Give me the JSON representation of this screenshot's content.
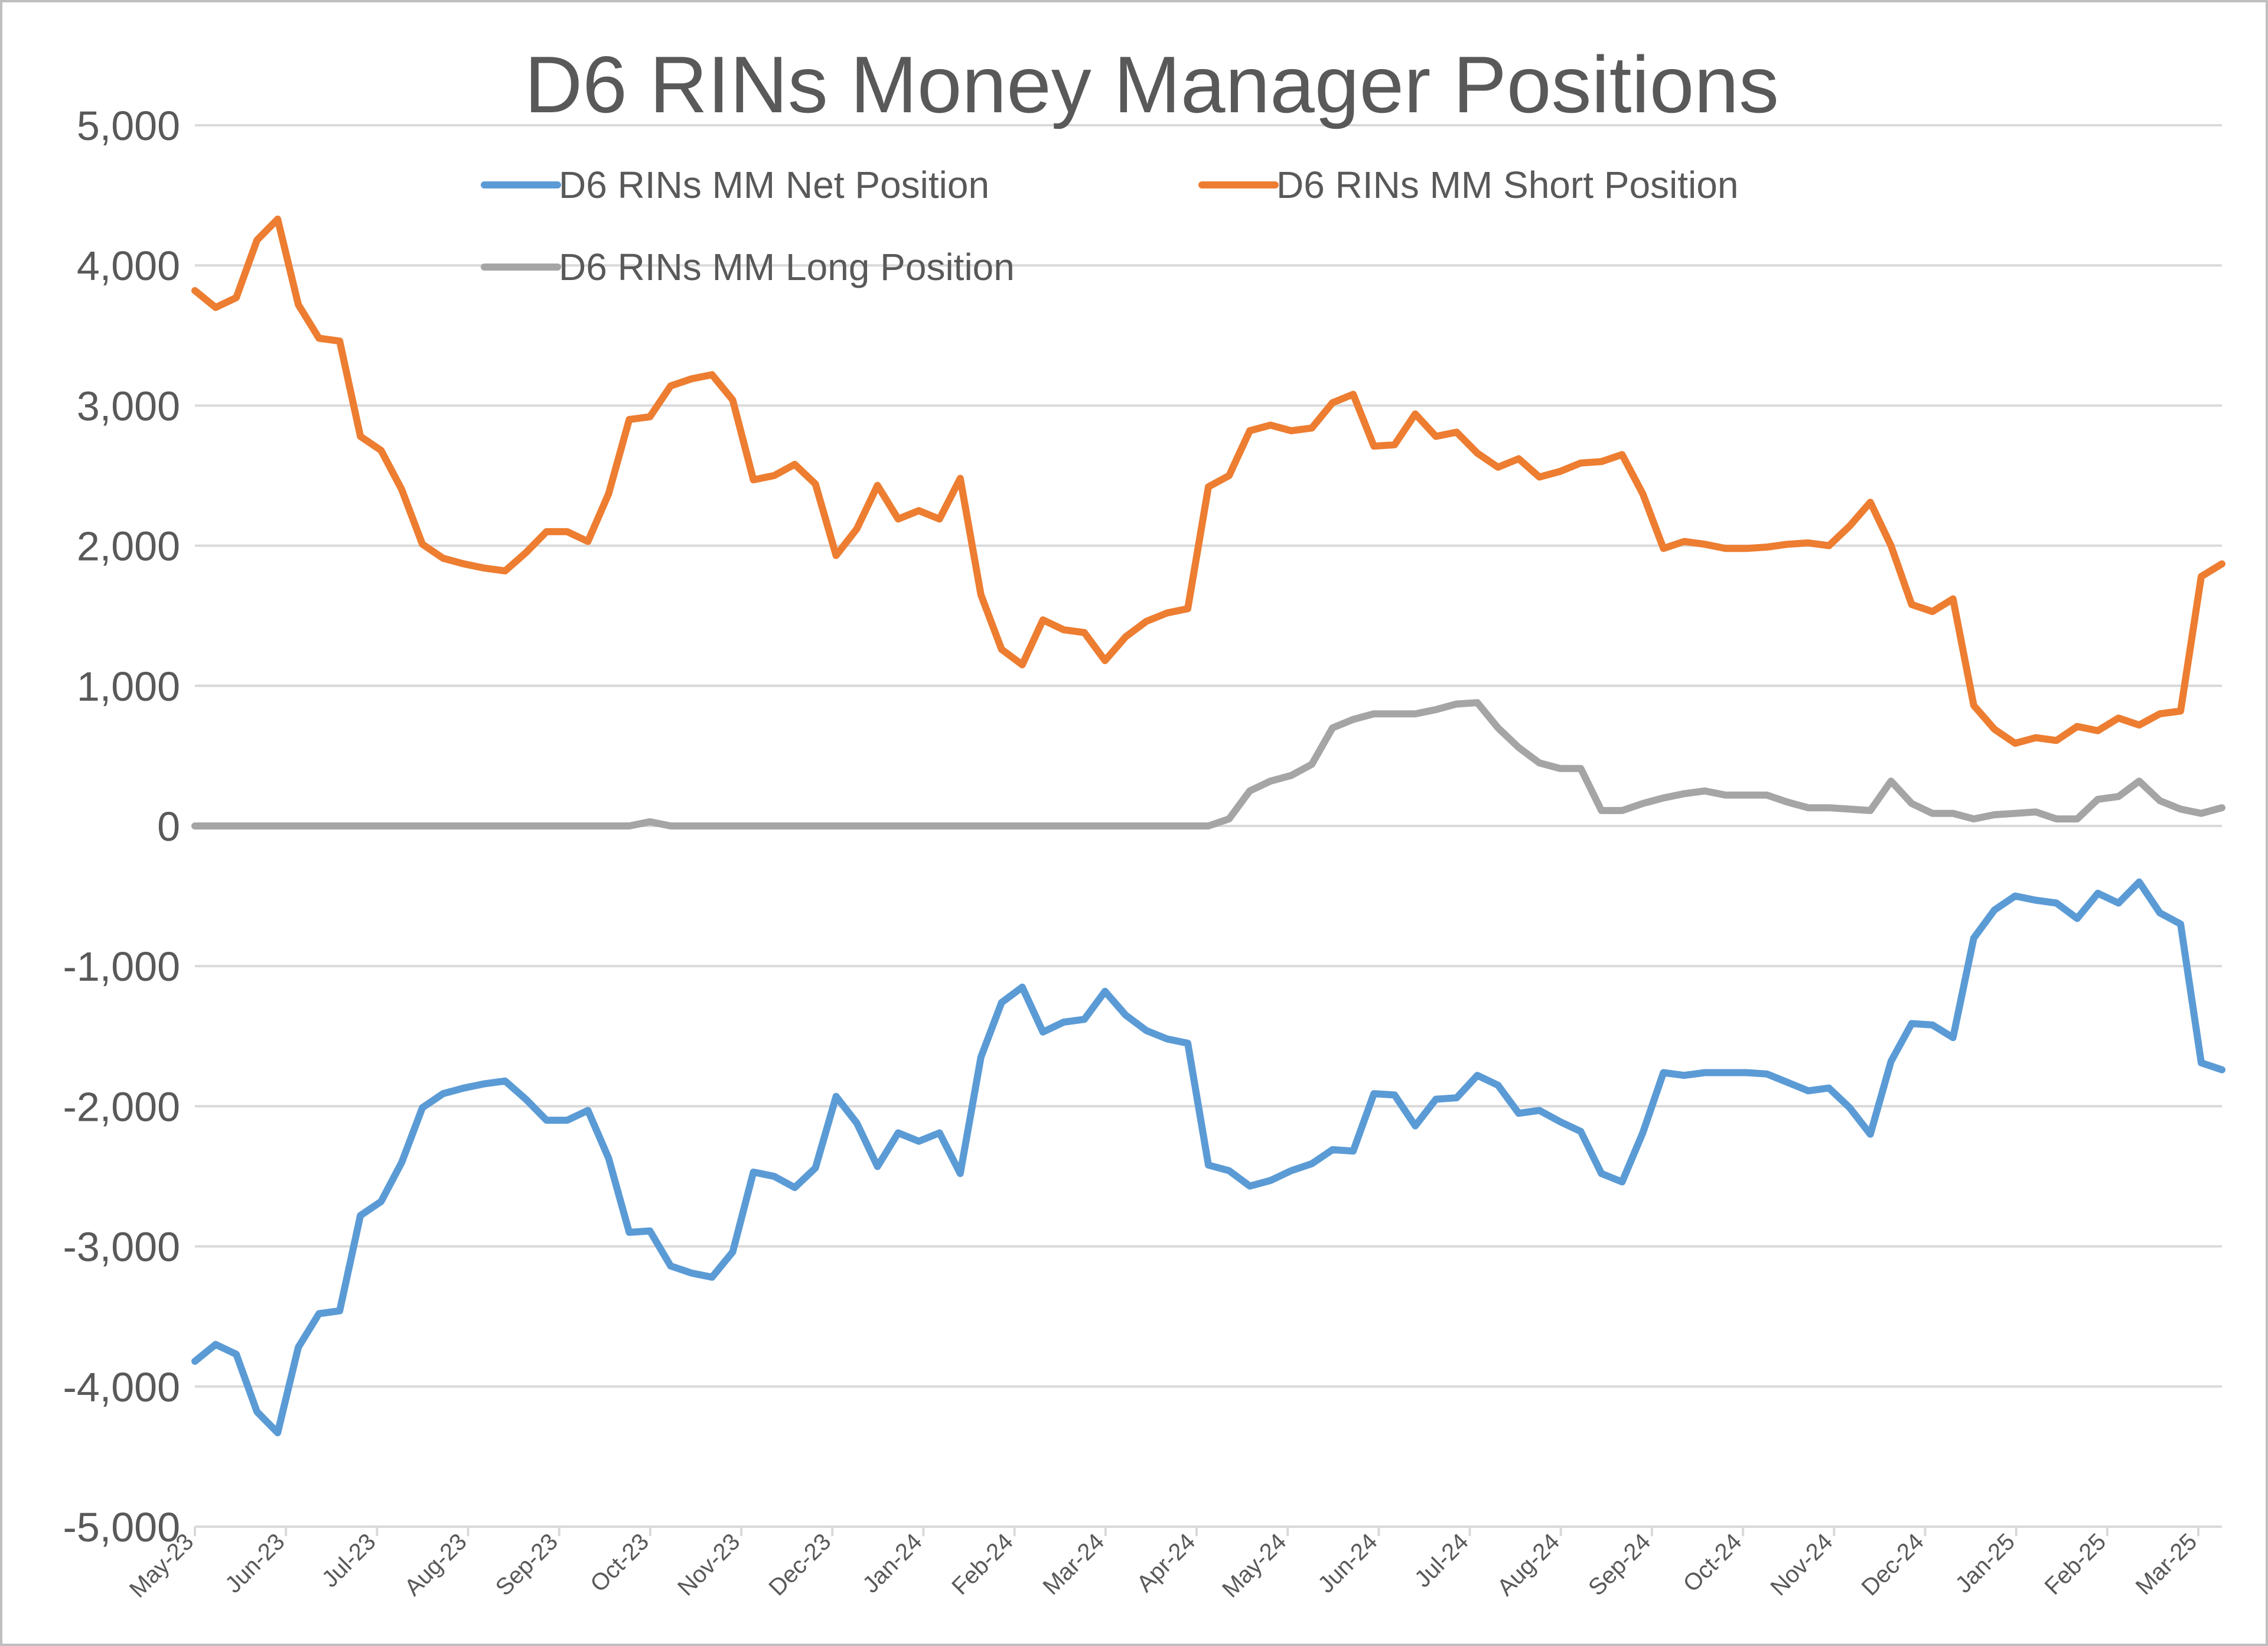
{
  "chart_data": {
    "type": "line",
    "title": "D6 RINs Money Manager Positions",
    "xlabel": "",
    "ylabel": "",
    "ylim": [
      -5000,
      5000
    ],
    "y_ticks": [
      5000,
      4000,
      3000,
      2000,
      1000,
      0,
      -1000,
      -2000,
      -3000,
      -4000,
      -5000
    ],
    "y_tick_labels": [
      "5,000",
      "4,000",
      "3,000",
      "2,000",
      "1,000",
      "0",
      "-1,000",
      "-2,000",
      "-3,000",
      "-4,000",
      "-5,000"
    ],
    "x_tick_labels": [
      "May-23",
      "Jun-23",
      "Jul-23",
      "Aug-23",
      "Sep-23",
      "Oct-23",
      "Nov-23",
      "Dec-23",
      "Jan-24",
      "Feb-24",
      "Mar-24",
      "Apr-24",
      "May-24",
      "Jun-24",
      "Jul-24",
      "Aug-24",
      "Sep-24",
      "Oct-24",
      "Nov-24",
      "Dec-24",
      "Jan-25",
      "Feb-25",
      "Mar-25"
    ],
    "grid": true,
    "legend_position": "top",
    "series": [
      {
        "name": "D6 RINs MM Net Position",
        "color": "#5b9bd5",
        "values": [
          -3820,
          -3700,
          -3770,
          -4180,
          -4330,
          -3720,
          -3480,
          -3460,
          -2780,
          -2680,
          -2400,
          -2010,
          -1910,
          -1870,
          -1840,
          -1820,
          -1950,
          -2100,
          -2100,
          -2030,
          -2370,
          -2900,
          -2890,
          -3140,
          -3190,
          -3220,
          -3040,
          -2470,
          -2500,
          -2580,
          -2440,
          -1930,
          -2120,
          -2430,
          -2190,
          -2250,
          -2190,
          -2480,
          -1650,
          -1260,
          -1150,
          -1470,
          -1400,
          -1380,
          -1180,
          -1350,
          -1460,
          -1520,
          -1550,
          -2420,
          -2460,
          -2570,
          -2530,
          -2460,
          -2410,
          -2310,
          -2320,
          -1910,
          -1920,
          -2140,
          -1950,
          -1940,
          -1780,
          -1850,
          -2050,
          -2030,
          -2110,
          -2180,
          -2480,
          -2540,
          -2190,
          -1760,
          -1780,
          -1760,
          -1760,
          -1760,
          -1770,
          -1830,
          -1890,
          -1870,
          -2010,
          -2200,
          -1680,
          -1410,
          -1420,
          -1510,
          -800,
          -600,
          -500,
          -530,
          -550,
          -660,
          -480,
          -550,
          -400,
          -620,
          -700,
          -1690,
          -1740
        ]
      },
      {
        "name": "D6 RINs MM Short Position",
        "color": "#ed7d31",
        "values": [
          3820,
          3700,
          3770,
          4180,
          4330,
          3720,
          3480,
          3460,
          2780,
          2680,
          2400,
          2010,
          1910,
          1870,
          1840,
          1820,
          1950,
          2100,
          2100,
          2030,
          2370,
          2900,
          2920,
          3140,
          3190,
          3220,
          3040,
          2470,
          2500,
          2580,
          2440,
          1930,
          2120,
          2430,
          2190,
          2250,
          2190,
          2480,
          1650,
          1260,
          1150,
          1470,
          1400,
          1380,
          1180,
          1350,
          1460,
          1520,
          1550,
          2420,
          2500,
          2820,
          2860,
          2820,
          2840,
          3020,
          3080,
          2710,
          2720,
          2940,
          2780,
          2810,
          2660,
          2560,
          2620,
          2490,
          2530,
          2590,
          2600,
          2650,
          2370,
          1980,
          2030,
          2010,
          1980,
          1980,
          1990,
          2010,
          2020,
          2000,
          2140,
          2310,
          2000,
          1580,
          1530,
          1620,
          860,
          690,
          590,
          630,
          610,
          710,
          680,
          770,
          720,
          800,
          820,
          1780,
          1870
        ]
      },
      {
        "name": "D6 RINs MM Long Position",
        "color": "#a5a5a5",
        "values": [
          0,
          0,
          0,
          0,
          0,
          0,
          0,
          0,
          0,
          0,
          0,
          0,
          0,
          0,
          0,
          0,
          0,
          0,
          0,
          0,
          0,
          0,
          30,
          0,
          0,
          0,
          0,
          0,
          0,
          0,
          0,
          0,
          0,
          0,
          0,
          0,
          0,
          0,
          0,
          0,
          0,
          0,
          0,
          0,
          0,
          0,
          0,
          0,
          0,
          0,
          50,
          250,
          320,
          360,
          440,
          700,
          760,
          800,
          800,
          800,
          830,
          870,
          880,
          700,
          560,
          450,
          410,
          410,
          110,
          110,
          160,
          200,
          230,
          250,
          220,
          220,
          220,
          170,
          130,
          130,
          120,
          110,
          320,
          160,
          90,
          90,
          50,
          80,
          90,
          100,
          50,
          50,
          190,
          210,
          320,
          180,
          120,
          90,
          130
        ]
      }
    ]
  }
}
